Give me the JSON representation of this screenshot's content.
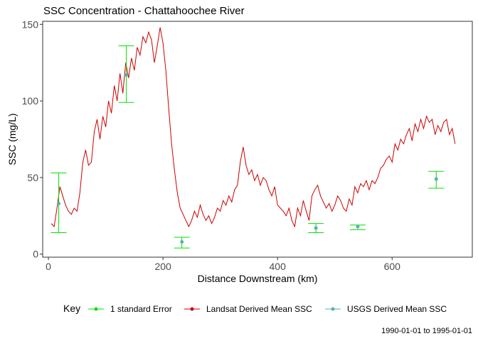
{
  "chart_data": {
    "type": "line",
    "title": "SSC Concentration - Chattahoochee River",
    "xlabel": "Distance Downstream (km)",
    "ylabel": "SSC (mg/L)",
    "caption": "1990-01-01 to 1995-01-01",
    "xlim": [
      -10,
      740
    ],
    "ylim": [
      -2,
      152
    ],
    "x_ticks": [
      0,
      200,
      400,
      600
    ],
    "y_ticks": [
      0,
      50,
      100,
      150
    ],
    "grid": false,
    "legend_placement": "bottom",
    "legend": {
      "title": "Key",
      "entries": [
        "1 standard Error",
        "Landsat Derived Mean SSC",
        "USGS Derived Mean SSC"
      ]
    },
    "colors": {
      "standard_error": "#00e000",
      "landsat": "#cc0000",
      "usgs": "#52b5a8"
    },
    "series": [
      {
        "name": "Landsat Derived Mean SSC",
        "x": [
          5,
          10,
          15,
          20,
          25,
          30,
          35,
          40,
          45,
          50,
          55,
          60,
          65,
          70,
          75,
          80,
          85,
          90,
          95,
          100,
          105,
          110,
          115,
          120,
          125,
          130,
          135,
          140,
          145,
          150,
          155,
          160,
          165,
          170,
          175,
          180,
          185,
          190,
          195,
          200,
          205,
          210,
          215,
          220,
          225,
          230,
          235,
          240,
          245,
          250,
          255,
          260,
          265,
          270,
          275,
          280,
          285,
          290,
          295,
          300,
          305,
          310,
          315,
          320,
          325,
          330,
          335,
          340,
          345,
          350,
          355,
          360,
          365,
          370,
          375,
          380,
          385,
          390,
          395,
          400,
          405,
          410,
          415,
          420,
          425,
          430,
          435,
          440,
          445,
          450,
          455,
          460,
          465,
          470,
          475,
          480,
          485,
          490,
          495,
          500,
          505,
          510,
          515,
          520,
          525,
          530,
          535,
          540,
          545,
          550,
          555,
          560,
          565,
          570,
          575,
          580,
          585,
          590,
          595,
          600,
          605,
          610,
          615,
          620,
          625,
          630,
          635,
          640,
          645,
          650,
          655,
          660,
          665,
          670,
          675,
          680,
          685,
          690,
          695,
          700,
          705,
          710
        ],
        "y": [
          20,
          18,
          30,
          44,
          38,
          32,
          28,
          26,
          30,
          28,
          40,
          60,
          68,
          58,
          60,
          80,
          88,
          75,
          90,
          83,
          100,
          92,
          110,
          100,
          118,
          105,
          125,
          115,
          128,
          120,
          135,
          130,
          142,
          138,
          145,
          140,
          125,
          136,
          148,
          138,
          120,
          95,
          72,
          55,
          40,
          30,
          26,
          22,
          18,
          22,
          28,
          24,
          32,
          26,
          22,
          25,
          20,
          24,
          30,
          28,
          35,
          32,
          38,
          34,
          42,
          45,
          60,
          70,
          58,
          52,
          55,
          48,
          52,
          45,
          50,
          48,
          42,
          38,
          44,
          32,
          30,
          28,
          25,
          30,
          22,
          18,
          30,
          25,
          35,
          28,
          22,
          38,
          42,
          45,
          38,
          34,
          30,
          33,
          28,
          32,
          38,
          35,
          30,
          28,
          36,
          32,
          44,
          40,
          46,
          44,
          48,
          42,
          48,
          46,
          50,
          56,
          58,
          62,
          64,
          60,
          72,
          68,
          75,
          72,
          78,
          82,
          74,
          85,
          80,
          88,
          82,
          90,
          86,
          88,
          78,
          84,
          80,
          86,
          88,
          78,
          82,
          72
        ]
      }
    ],
    "usgs_points": [
      {
        "x": 18,
        "y": 33,
        "se_low": 14,
        "se_high": 53
      },
      {
        "x": 136,
        "y": 117,
        "se_low": 99,
        "se_high": 136
      },
      {
        "x": 233,
        "y": 8,
        "se_low": 4,
        "se_high": 11
      },
      {
        "x": 467,
        "y": 17,
        "se_low": 14,
        "se_high": 20
      },
      {
        "x": 540,
        "y": 18,
        "se_low": 16,
        "se_high": 19
      },
      {
        "x": 677,
        "y": 49,
        "se_low": 43,
        "se_high": 54
      }
    ]
  }
}
